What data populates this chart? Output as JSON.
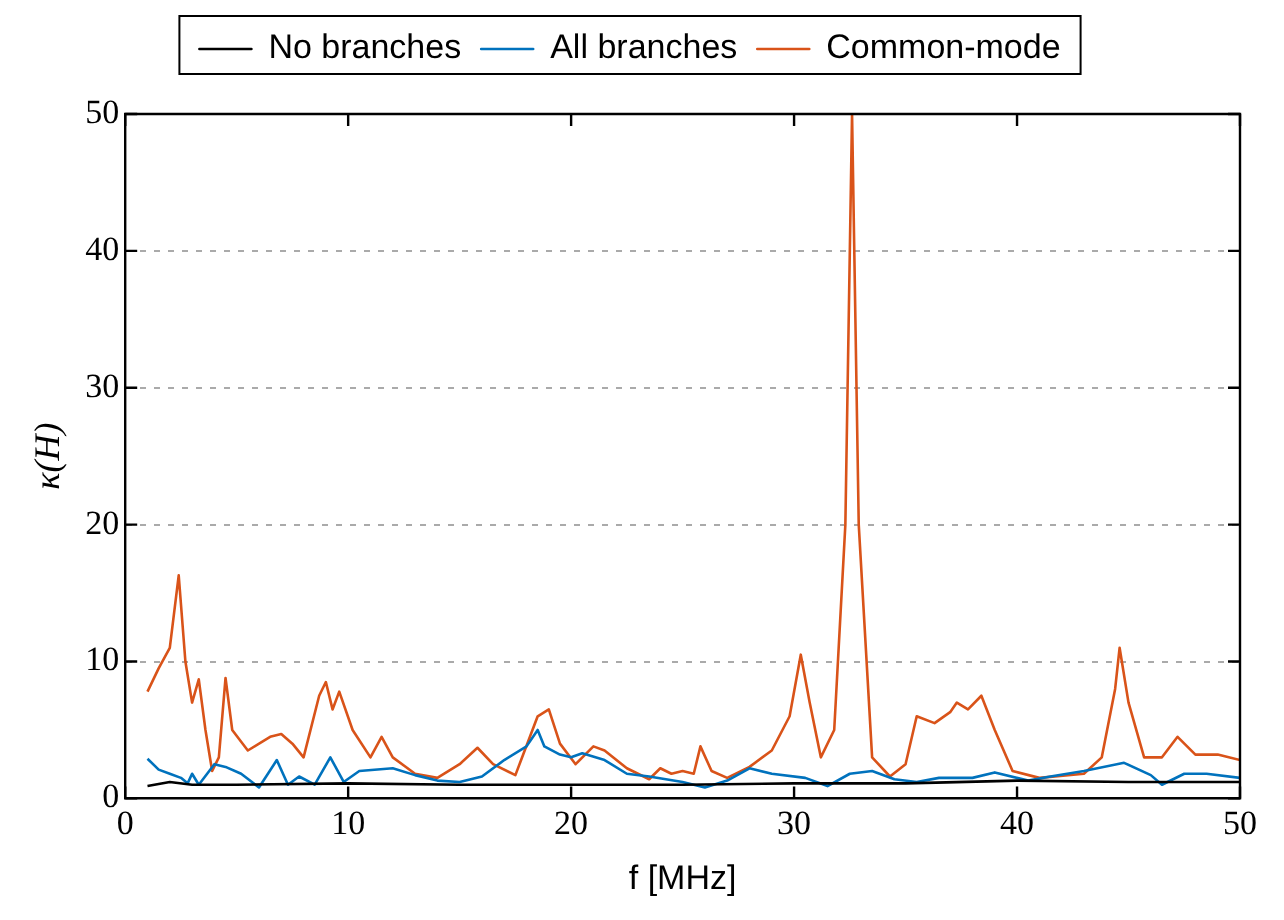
{
  "chart_data": {
    "type": "line",
    "xlabel": "f [MHz]",
    "ylabel": "κ(H)",
    "xlim": [
      0,
      50
    ],
    "xticks": [
      0,
      10,
      20,
      30,
      40,
      50
    ],
    "ylim": [
      0,
      50
    ],
    "yticks": [
      0,
      10,
      20,
      30,
      40,
      50
    ],
    "grid": "y",
    "legend": "top",
    "marker": "none",
    "line_style": "solid",
    "series": [
      {
        "name": "No branches",
        "color": "#000000",
        "x": [
          1,
          2,
          3,
          5,
          10,
          15,
          20,
          25,
          30,
          35,
          40,
          45,
          50
        ],
        "values": [
          0.9,
          1.2,
          1.0,
          1.0,
          1.1,
          1.0,
          1.0,
          1.0,
          1.1,
          1.1,
          1.3,
          1.2,
          1.2
        ]
      },
      {
        "name": "All branches",
        "color": "#0072bd",
        "x": [
          1,
          1.5,
          2,
          2.5,
          2.8,
          3,
          3.3,
          4,
          4.5,
          5.2,
          6,
          6.8,
          7.3,
          7.8,
          8.5,
          9.2,
          9.8,
          10.5,
          12,
          13,
          14,
          15,
          16,
          17,
          18,
          18.5,
          18.8,
          19.5,
          20,
          20.5,
          21.5,
          22.5,
          23.5,
          25,
          26,
          27,
          28,
          29,
          30.5,
          31.5,
          32.5,
          33.5,
          34.5,
          35.5,
          36.5,
          38,
          39,
          40.5,
          41.5,
          43,
          44.8,
          46,
          46.5,
          47.5,
          48.5,
          50
        ],
        "values": [
          2.9,
          2.1,
          1.8,
          1.5,
          1.1,
          1.8,
          1.0,
          2.5,
          2.3,
          1.8,
          0.8,
          2.8,
          1.0,
          1.6,
          1.0,
          3.0,
          1.2,
          2,
          2.2,
          1.7,
          1.3,
          1.2,
          1.6,
          2.8,
          3.8,
          5,
          3.8,
          3.2,
          3,
          3.3,
          2.8,
          1.8,
          1.6,
          1.2,
          0.8,
          1.3,
          2.2,
          1.8,
          1.5,
          0.9,
          1.8,
          2.0,
          1.4,
          1.2,
          1.5,
          1.5,
          1.9,
          1.3,
          1.6,
          2.0,
          2.6,
          1.7,
          1.0,
          1.8,
          1.8,
          1.5
        ]
      },
      {
        "name": "Common-mode",
        "color": "#d95319",
        "x": [
          1,
          1.5,
          2,
          2.4,
          2.7,
          3,
          3.3,
          3.6,
          3.9,
          4.2,
          4.5,
          4.8,
          5.5,
          6.5,
          7,
          7.5,
          8,
          8.7,
          9,
          9.3,
          9.6,
          10.2,
          11,
          11.5,
          12,
          13,
          14,
          15,
          15.8,
          16.5,
          17.5,
          18.5,
          19,
          19.5,
          20.2,
          21,
          21.5,
          22.5,
          23,
          23.5,
          24,
          24.5,
          25,
          25.5,
          25.8,
          26.3,
          27,
          28,
          29,
          29.8,
          30.3,
          30.7,
          31.2,
          31.8,
          32.3,
          32.6,
          32.9,
          33.5,
          34.3,
          35,
          35.5,
          36.3,
          37,
          37.3,
          37.8,
          38.4,
          39,
          39.8,
          41,
          43,
          43.8,
          44.4,
          44.6,
          45,
          45.7,
          46.5,
          47.2,
          48,
          49,
          50
        ],
        "values": [
          7.8,
          9.5,
          11,
          16.3,
          10,
          7,
          8.7,
          5,
          2,
          3,
          8.8,
          5,
          3.5,
          4.5,
          4.7,
          4,
          3,
          7.5,
          8.5,
          6.5,
          7.8,
          5,
          3,
          4.5,
          3,
          1.8,
          1.5,
          2.5,
          3.7,
          2.5,
          1.7,
          6,
          6.5,
          4,
          2.5,
          3.8,
          3.5,
          2.2,
          1.8,
          1.4,
          2.2,
          1.8,
          2,
          1.8,
          3.8,
          2,
          1.5,
          2.3,
          3.5,
          6,
          10.5,
          7,
          3,
          5,
          20,
          50,
          20,
          3,
          1.6,
          2.5,
          6,
          5.5,
          6.3,
          7,
          6.5,
          7.5,
          5,
          2,
          1.5,
          1.8,
          3,
          8,
          11,
          7,
          3,
          3,
          4.5,
          3.2,
          3.2,
          2.8
        ]
      }
    ]
  }
}
